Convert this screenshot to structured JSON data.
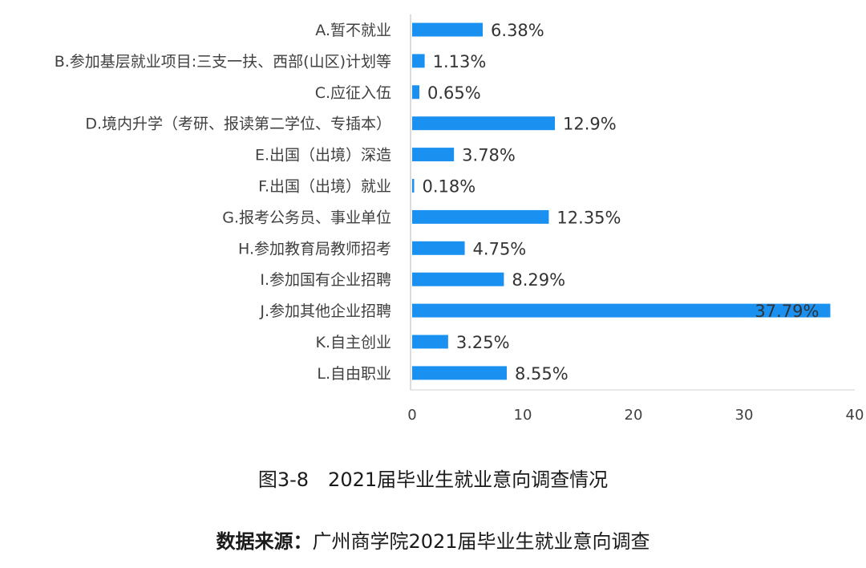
{
  "chart_data": {
    "type": "bar",
    "orientation": "horizontal",
    "categories": [
      "A.暂不就业",
      "B.参加基层就业项目:三支一扶、西部(山区)计划等",
      "C.应征入伍",
      "D.境内升学（考研、报读第二学位、专插本）",
      "E.出国（出境）深造",
      "F.出国（出境）就业",
      "G.报考公务员、事业单位",
      "H.参加教育局教师招考",
      "I.参加国有企业招聘",
      "J.参加其他企业招聘",
      "K.自主创业",
      "L.自由职业"
    ],
    "values": [
      6.38,
      1.13,
      0.65,
      12.9,
      3.78,
      0.18,
      12.35,
      4.75,
      8.29,
      37.79,
      3.25,
      8.55
    ],
    "value_labels": [
      "6.38%",
      "1.13%",
      "0.65%",
      "12.9%",
      "3.78%",
      "0.18%",
      "12.35%",
      "4.75%",
      "8.29%",
      "37.79%",
      "3.25%",
      "8.55%"
    ],
    "xlim": [
      0,
      40
    ],
    "x_ticks": [
      "0",
      "10",
      "20",
      "30",
      "40"
    ],
    "bar_color": "#1a90f0",
    "grid": false,
    "legend": "none"
  },
  "figure_title": "图3-8　2021届毕业生就业意向调查情况",
  "source": {
    "label": "数据来源：",
    "text": "广州商学院2021届毕业生就业意向调查"
  }
}
